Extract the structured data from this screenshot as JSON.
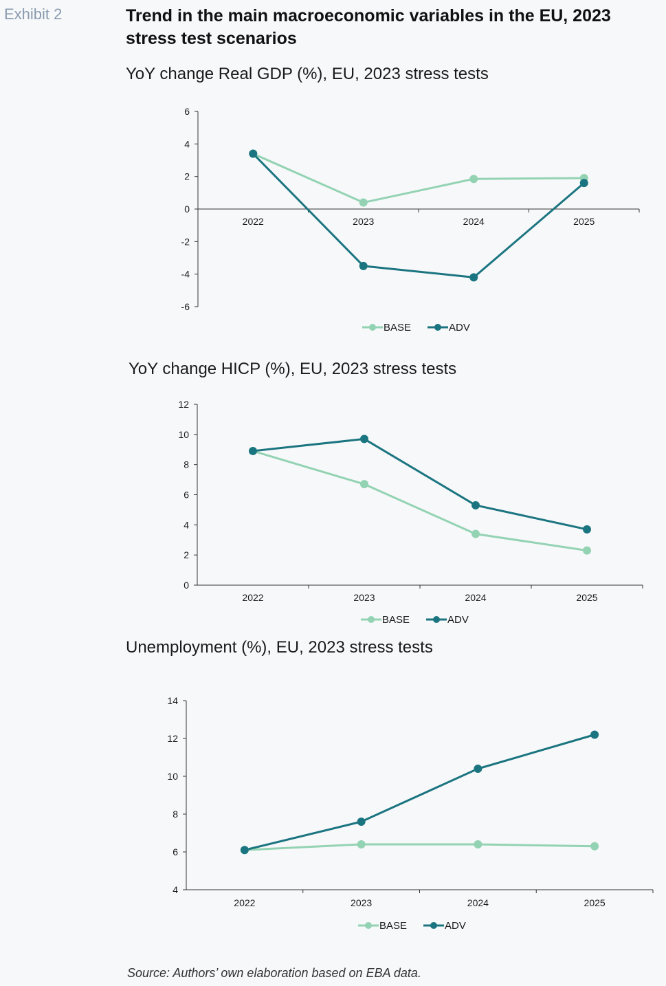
{
  "header": {
    "exhibit": "Exhibit 2",
    "title": "Trend in the main macroeconomic variables in the EU, 2023 stress test scenarios"
  },
  "colors": {
    "base": "#93d3b3",
    "adv": "#1b7581",
    "axis": "#333333"
  },
  "chart_data": [
    {
      "type": "line",
      "title": "YoY change Real GDP (%), EU, 2023 stress tests",
      "categories": [
        "2022",
        "2023",
        "2024",
        "2025"
      ],
      "series": [
        {
          "name": "BASE",
          "values": [
            3.4,
            0.4,
            1.85,
            1.9
          ]
        },
        {
          "name": "ADV",
          "values": [
            3.4,
            -3.5,
            -4.2,
            1.6
          ]
        }
      ],
      "ylim": [
        -6,
        6
      ],
      "yticks": [
        -6,
        -4,
        -2,
        0,
        2,
        4,
        6
      ],
      "grid": false,
      "legend": "bottom-center"
    },
    {
      "type": "line",
      "title": "YoY change HICP (%), EU, 2023 stress tests",
      "categories": [
        "2022",
        "2023",
        "2024",
        "2025"
      ],
      "series": [
        {
          "name": "BASE",
          "values": [
            8.9,
            6.7,
            3.4,
            2.3
          ]
        },
        {
          "name": "ADV",
          "values": [
            8.9,
            9.7,
            5.3,
            3.7
          ]
        }
      ],
      "ylim": [
        0,
        12
      ],
      "yticks": [
        0,
        2,
        4,
        6,
        8,
        10,
        12
      ],
      "grid": false,
      "legend": "bottom-center"
    },
    {
      "type": "line",
      "title": "Unemployment (%), EU, 2023 stress tests",
      "categories": [
        "2022",
        "2023",
        "2024",
        "2025"
      ],
      "series": [
        {
          "name": "BASE",
          "values": [
            6.1,
            6.4,
            6.4,
            6.3
          ]
        },
        {
          "name": "ADV",
          "values": [
            6.1,
            7.6,
            10.4,
            12.2
          ]
        }
      ],
      "ylim": [
        4,
        14
      ],
      "yticks": [
        4,
        6,
        8,
        10,
        12,
        14
      ],
      "grid": false,
      "legend": "bottom-center"
    }
  ],
  "source": "Source: Authors’ own elaboration based on EBA data."
}
